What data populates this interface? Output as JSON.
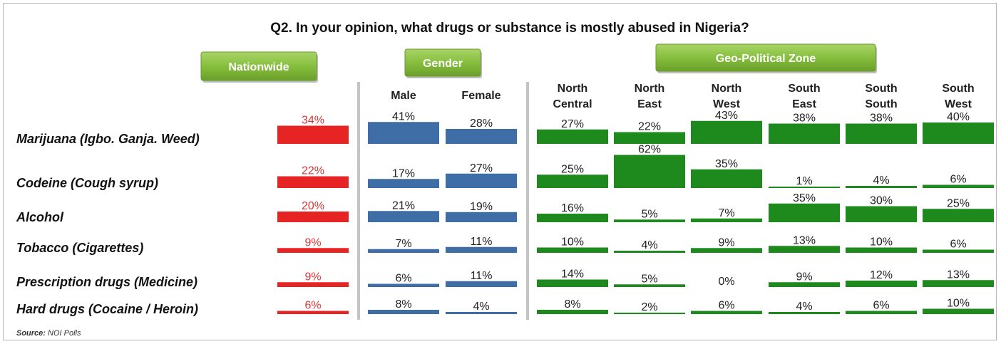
{
  "chart_data": {
    "type": "bar",
    "title": "Q2. In your opinion, what drugs or substance is mostly abused in Nigeria?",
    "group_headers": [
      "Nationwide",
      "Gender",
      "Geo-Political Zone"
    ],
    "columns": [
      {
        "label": [
          "",
          ""
        ],
        "group": "Nationwide"
      },
      {
        "label": [
          "Male",
          ""
        ],
        "group": "Gender"
      },
      {
        "label": [
          "Female",
          ""
        ],
        "group": "Gender"
      },
      {
        "label": [
          "North",
          "Central"
        ],
        "group": "Geo-Political Zone"
      },
      {
        "label": [
          "North",
          "East"
        ],
        "group": "Geo-Political Zone"
      },
      {
        "label": [
          "North",
          "West"
        ],
        "group": "Geo-Political Zone"
      },
      {
        "label": [
          "South",
          "East"
        ],
        "group": "Geo-Political Zone"
      },
      {
        "label": [
          "South",
          "South"
        ],
        "group": "Geo-Political Zone"
      },
      {
        "label": [
          "South",
          "West"
        ],
        "group": "Geo-Political Zone"
      }
    ],
    "categories": [
      "Marijuana (Igbo. Ganja. Weed)",
      "Codeine (Cough syrup)",
      "Alcohol",
      "Tobacco (Cigarettes)",
      "Prescription drugs (Medicine)",
      "Hard drugs (Cocaine / Heroin)"
    ],
    "values": [
      [
        34,
        41,
        28,
        27,
        22,
        43,
        38,
        38,
        40
      ],
      [
        22,
        17,
        27,
        25,
        62,
        35,
        1,
        4,
        6
      ],
      [
        20,
        21,
        19,
        16,
        5,
        7,
        35,
        30,
        25
      ],
      [
        9,
        7,
        11,
        10,
        4,
        9,
        13,
        10,
        6
      ],
      [
        9,
        6,
        11,
        14,
        5,
        0,
        9,
        12,
        13
      ],
      [
        6,
        8,
        4,
        8,
        2,
        6,
        4,
        6,
        10
      ]
    ],
    "unit": "%",
    "colors": {
      "Nationwide": "#e62424",
      "Gender": "#3f6ea6",
      "Geo-Political Zone": "#1e8a1e"
    },
    "source_label": "Source:",
    "source": "NOI Polls"
  },
  "colors": {
    "header_button": "#7fb539",
    "divider": "#c4c4c4",
    "nationwide_text": "#d93636"
  }
}
